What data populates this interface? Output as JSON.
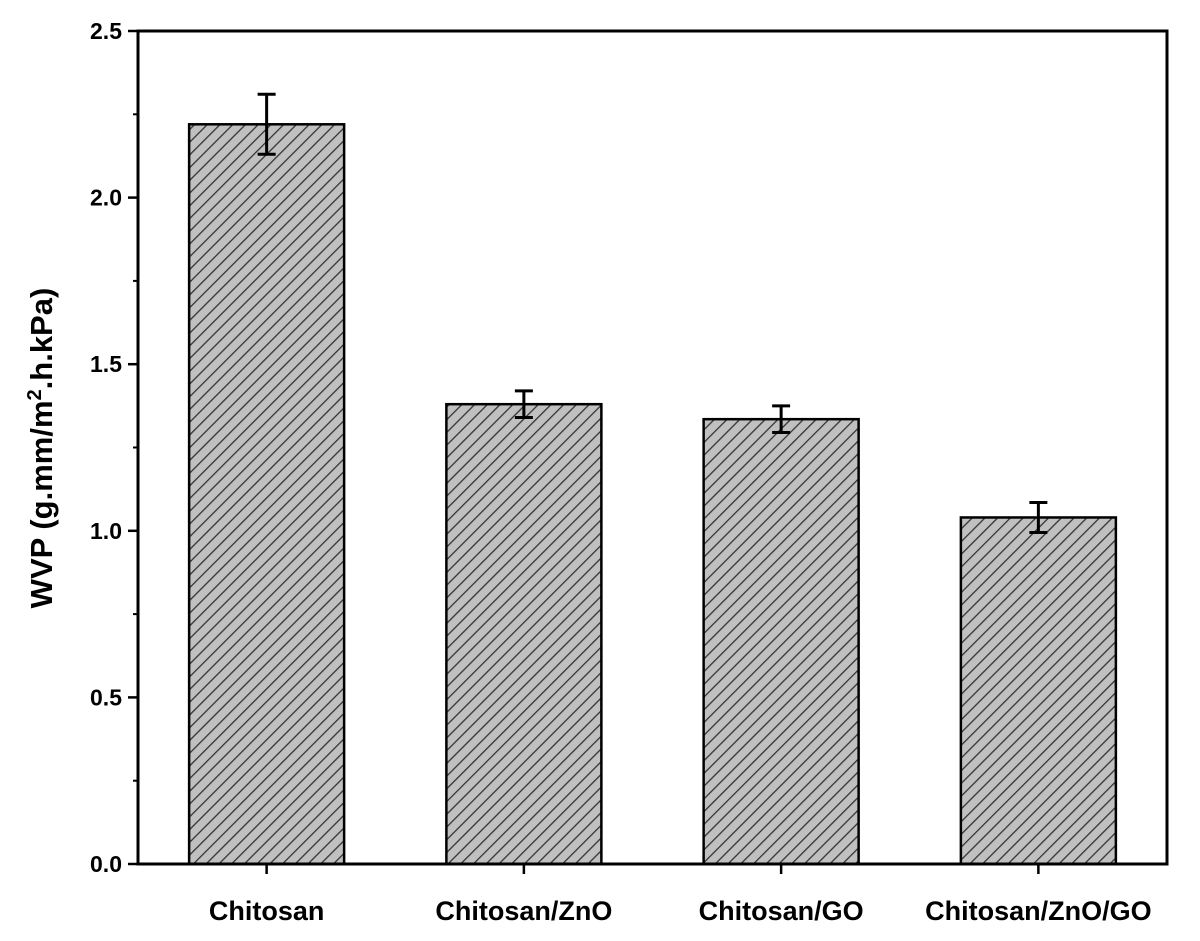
{
  "chart_data": {
    "type": "bar",
    "categories": [
      "Chitosan",
      "Chitosan/ZnO",
      "Chitosan/GO",
      "Chitosan/ZnO/GO"
    ],
    "values": [
      2.22,
      1.38,
      1.335,
      1.04
    ],
    "errors": [
      0.09,
      0.04,
      0.04,
      0.045
    ],
    "xlabel": "",
    "ylabel": {
      "prefix": "WVP (g.mm/m",
      "superscript": "2",
      "suffix": ".h.kPa)"
    },
    "ylim": [
      0,
      2.5
    ],
    "yticks": [
      "0.0",
      "0.5",
      "1.0",
      "1.5",
      "2.0",
      "2.5"
    ],
    "grid": false,
    "bar_fill": "#c0c0c0",
    "hatch_color": "#333333",
    "axis_color": "#000000"
  }
}
